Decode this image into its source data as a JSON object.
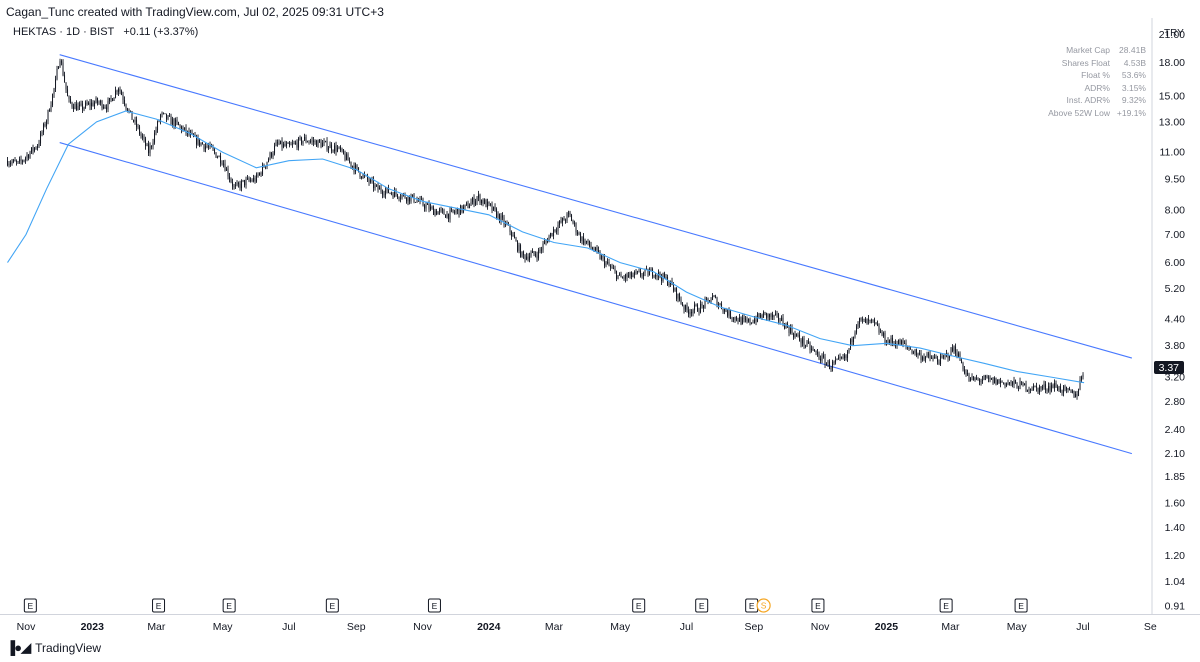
{
  "header": {
    "credit": "Cagan_Tunc created with TradingView.com, Jul 02, 2025 09:31 UTC+3",
    "symbol": "HEKTAS · 1D · BIST",
    "change": "+0.11 (+3.37%)"
  },
  "currency": "TRY",
  "stats": [
    {
      "label": "Market Cap",
      "value": "28.41B"
    },
    {
      "label": "Shares Float",
      "value": "4.53B"
    },
    {
      "label": "Float %",
      "value": "53.6%"
    },
    {
      "label": "ADR%",
      "value": "3.15%"
    },
    {
      "label": "Inst. ADR%",
      "value": "9.32%"
    },
    {
      "label": "Above 52W Low",
      "value": "+19.1%"
    }
  ],
  "footer": {
    "brand": "TradingView",
    "logo": "tradingview-logo-icon"
  },
  "colors": {
    "candle": "#131722",
    "ma": "#42a5f5",
    "channel": "#2962ff",
    "dividend": "#f5a623",
    "price_tag_bg": "#131722"
  },
  "chart_data": {
    "type": "candlestick",
    "y_scale": "log",
    "y_ticks": [
      "21.00",
      "18.00",
      "15.00",
      "13.00",
      "11.00",
      "9.50",
      "8.00",
      "7.00",
      "6.00",
      "5.20",
      "4.40",
      "3.80",
      "3.20",
      "2.80",
      "2.40",
      "2.10",
      "1.85",
      "1.60",
      "1.40",
      "1.20",
      "1.04",
      "0.91"
    ],
    "ylim": [
      0.87,
      23.0
    ],
    "x_labels": [
      {
        "label": "Nov",
        "date": "2022-11-01",
        "bold": false
      },
      {
        "label": "2023",
        "date": "2023-01-01",
        "bold": true
      },
      {
        "label": "Mar",
        "date": "2023-03-01",
        "bold": false
      },
      {
        "label": "May",
        "date": "2023-05-01",
        "bold": false
      },
      {
        "label": "Jul",
        "date": "2023-07-01",
        "bold": false
      },
      {
        "label": "Sep",
        "date": "2023-09-01",
        "bold": false
      },
      {
        "label": "Nov",
        "date": "2023-11-01",
        "bold": false
      },
      {
        "label": "2024",
        "date": "2024-01-01",
        "bold": true
      },
      {
        "label": "Mar",
        "date": "2024-03-01",
        "bold": false
      },
      {
        "label": "May",
        "date": "2024-05-01",
        "bold": false
      },
      {
        "label": "Jul",
        "date": "2024-07-01",
        "bold": false
      },
      {
        "label": "Sep",
        "date": "2024-09-01",
        "bold": false
      },
      {
        "label": "Nov",
        "date": "2024-11-01",
        "bold": false
      },
      {
        "label": "2025",
        "date": "2025-01-01",
        "bold": true
      },
      {
        "label": "Mar",
        "date": "2025-03-01",
        "bold": false
      },
      {
        "label": "May",
        "date": "2025-05-01",
        "bold": false
      },
      {
        "label": "Jul",
        "date": "2025-07-01",
        "bold": false
      },
      {
        "label": "Se",
        "date": "2025-09-01",
        "bold": false
      }
    ],
    "price_path": [
      [
        "2022-10-15",
        10.5
      ],
      [
        "2022-10-25",
        10.3
      ],
      [
        "2022-11-05",
        11.0
      ],
      [
        "2022-11-12",
        11.5
      ],
      [
        "2022-11-20",
        13.2
      ],
      [
        "2022-11-28",
        16.0
      ],
      [
        "2022-12-02",
        18.8
      ],
      [
        "2022-12-10",
        14.5
      ],
      [
        "2022-12-20",
        14.0
      ],
      [
        "2023-01-05",
        14.5
      ],
      [
        "2023-01-15",
        14.2
      ],
      [
        "2023-01-25",
        15.8
      ],
      [
        "2023-02-05",
        13.5
      ],
      [
        "2023-02-12",
        12.5
      ],
      [
        "2023-02-22",
        11.0
      ],
      [
        "2023-03-05",
        13.5
      ],
      [
        "2023-03-20",
        12.8
      ],
      [
        "2023-04-05",
        11.8
      ],
      [
        "2023-04-20",
        11.2
      ],
      [
        "2023-05-01",
        10.5
      ],
      [
        "2023-05-12",
        9.0
      ],
      [
        "2023-05-20",
        9.3
      ],
      [
        "2023-06-01",
        9.5
      ],
      [
        "2023-06-20",
        11.5
      ],
      [
        "2023-07-01",
        11.3
      ],
      [
        "2023-07-15",
        11.8
      ],
      [
        "2023-08-01",
        11.5
      ],
      [
        "2023-08-15",
        11.2
      ],
      [
        "2023-09-01",
        10.0
      ],
      [
        "2023-09-20",
        9.0
      ],
      [
        "2023-10-05",
        8.8
      ],
      [
        "2023-10-25",
        8.5
      ],
      [
        "2023-11-10",
        8.0
      ],
      [
        "2023-11-25",
        7.8
      ],
      [
        "2023-12-10",
        8.1
      ],
      [
        "2023-12-22",
        8.6
      ],
      [
        "2024-01-05",
        8.0
      ],
      [
        "2024-01-20",
        7.2
      ],
      [
        "2024-02-01",
        6.2
      ],
      [
        "2024-02-15",
        6.3
      ],
      [
        "2024-03-01",
        7.2
      ],
      [
        "2024-03-15",
        7.8
      ],
      [
        "2024-03-25",
        6.9
      ],
      [
        "2024-04-05",
        6.5
      ],
      [
        "2024-04-20",
        5.9
      ],
      [
        "2024-05-01",
        5.5
      ],
      [
        "2024-05-15",
        5.6
      ],
      [
        "2024-06-01",
        5.7
      ],
      [
        "2024-06-15",
        5.4
      ],
      [
        "2024-07-01",
        4.6
      ],
      [
        "2024-07-15",
        4.7
      ],
      [
        "2024-07-25",
        4.95
      ],
      [
        "2024-08-10",
        4.5
      ],
      [
        "2024-08-25",
        4.3
      ],
      [
        "2024-09-10",
        4.5
      ],
      [
        "2024-09-25",
        4.4
      ],
      [
        "2024-10-10",
        4.0
      ],
      [
        "2024-10-25",
        3.7
      ],
      [
        "2024-11-10",
        3.4
      ],
      [
        "2024-11-25",
        3.55
      ],
      [
        "2024-12-05",
        4.35
      ],
      [
        "2024-12-20",
        4.3
      ],
      [
        "2025-01-01",
        3.9
      ],
      [
        "2025-01-15",
        3.85
      ],
      [
        "2025-02-01",
        3.6
      ],
      [
        "2025-02-20",
        3.5
      ],
      [
        "2025-03-05",
        3.75
      ],
      [
        "2025-03-18",
        3.15
      ],
      [
        "2025-04-01",
        3.15
      ],
      [
        "2025-04-20",
        3.1
      ],
      [
        "2025-05-05",
        3.05
      ],
      [
        "2025-05-20",
        3.0
      ],
      [
        "2025-06-05",
        3.05
      ],
      [
        "2025-06-15",
        2.95
      ],
      [
        "2025-06-25",
        2.9
      ],
      [
        "2025-07-02",
        3.37
      ]
    ],
    "moving_average": [
      [
        "2022-10-15",
        6.0
      ],
      [
        "2022-11-01",
        7.0
      ],
      [
        "2022-11-20",
        9.0
      ],
      [
        "2022-12-10",
        11.5
      ],
      [
        "2023-01-05",
        13.0
      ],
      [
        "2023-02-01",
        13.8
      ],
      [
        "2023-03-01",
        13.2
      ],
      [
        "2023-04-01",
        12.2
      ],
      [
        "2023-05-01",
        11.0
      ],
      [
        "2023-06-01",
        10.1
      ],
      [
        "2023-07-01",
        10.5
      ],
      [
        "2023-08-01",
        10.6
      ],
      [
        "2023-09-01",
        10.0
      ],
      [
        "2023-10-01",
        9.0
      ],
      [
        "2023-11-01",
        8.4
      ],
      [
        "2023-12-01",
        8.1
      ],
      [
        "2024-01-01",
        7.8
      ],
      [
        "2024-02-01",
        7.1
      ],
      [
        "2024-03-01",
        6.7
      ],
      [
        "2024-04-01",
        6.5
      ],
      [
        "2024-05-01",
        6.0
      ],
      [
        "2024-06-01",
        5.7
      ],
      [
        "2024-07-01",
        5.1
      ],
      [
        "2024-08-01",
        4.7
      ],
      [
        "2024-09-01",
        4.45
      ],
      [
        "2024-10-01",
        4.25
      ],
      [
        "2024-11-01",
        3.95
      ],
      [
        "2024-12-01",
        3.8
      ],
      [
        "2025-01-01",
        3.85
      ],
      [
        "2025-02-01",
        3.75
      ],
      [
        "2025-03-01",
        3.6
      ],
      [
        "2025-04-01",
        3.45
      ],
      [
        "2025-05-01",
        3.3
      ],
      [
        "2025-06-01",
        3.2
      ],
      [
        "2025-07-02",
        3.1
      ]
    ],
    "channel_lines": [
      {
        "name": "upper",
        "start": [
          "2022-12-02",
          18.8
        ],
        "end": [
          "2025-08-15",
          3.55
        ]
      },
      {
        "name": "lower",
        "start": [
          "2022-12-02",
          11.6
        ],
        "end": [
          "2025-08-15",
          2.1
        ]
      }
    ],
    "last_price": "3.37",
    "last_price_value": 3.37,
    "earnings_markers": [
      "2022-11-05",
      "2023-03-03",
      "2023-05-07",
      "2023-08-10",
      "2023-11-12",
      "2024-05-18",
      "2024-07-15",
      "2024-08-30",
      "2024-10-30",
      "2025-02-25",
      "2025-05-05"
    ],
    "dividend_markers": [
      "2024-09-10"
    ],
    "earnings_label": "E",
    "dividend_label": "S"
  }
}
